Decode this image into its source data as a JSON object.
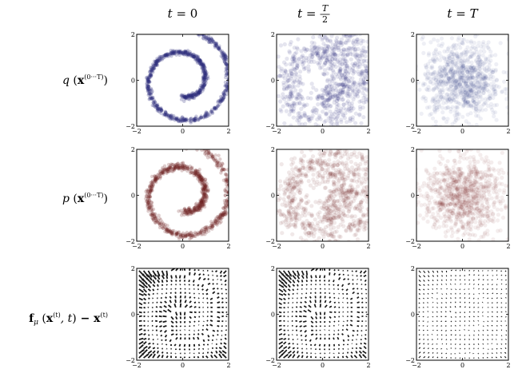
{
  "figure": {
    "column_titles": [
      {
        "pre": "t",
        "eq": " = ",
        "value": "0",
        "frac": null
      },
      {
        "pre": "t",
        "eq": " = ",
        "value": "",
        "frac": {
          "num": "T",
          "den": "2"
        }
      },
      {
        "pre": "t",
        "eq": " = ",
        "value": "T",
        "frac": null
      }
    ],
    "row_labels": [
      {
        "fn": "q",
        "arg": "x",
        "sup": "(0···T)",
        "tail": ""
      },
      {
        "fn": "p",
        "arg": "x",
        "sup": "(0···T)",
        "tail": ""
      },
      {
        "fn": "f",
        "sub": "μ",
        "arg": "x",
        "sup": "(t)",
        "extra": ", t",
        "tail": " − x",
        "tail_sup": "(t)"
      }
    ],
    "colors": {
      "q_samples": "#2b2d7a",
      "p_samples": "#6e1f1f",
      "arrows": "#1a1a1a",
      "axes": "#000000"
    }
  },
  "chart_data": [
    {
      "type": "scatter",
      "panel": "q-t0",
      "distribution": "swiss-roll spiral (data distribution)",
      "color": "#2b2d7a",
      "xlim": [
        -2,
        2
      ],
      "ylim": [
        -2,
        2
      ],
      "xticks": [
        -2,
        0,
        2
      ],
      "yticks": [
        -2,
        0,
        2
      ],
      "xtick_labels": [
        "−2",
        "0",
        "2"
      ],
      "ytick_labels": [
        "−2",
        "0",
        "2"
      ],
      "noise": 0.05,
      "opacity": 0.25
    },
    {
      "type": "scatter",
      "panel": "q-tT2",
      "distribution": "noisy spiral",
      "color": "#2b2d7a",
      "xlim": [
        -2,
        2
      ],
      "ylim": [
        -2,
        2
      ],
      "xticks": [
        -2,
        0,
        2
      ],
      "yticks": [
        -2,
        0,
        2
      ],
      "xtick_labels": [
        "−2",
        "0",
        "2"
      ],
      "ytick_labels": [
        "−2",
        "0",
        "2"
      ],
      "noise": 0.35,
      "opacity": 0.12
    },
    {
      "type": "scatter",
      "panel": "q-tT",
      "distribution": "isotropic Gaussian",
      "color": "#2b2d7a",
      "xlim": [
        -2,
        2
      ],
      "ylim": [
        -2,
        2
      ],
      "xticks": [
        -2,
        0,
        2
      ],
      "yticks": [
        -2,
        0,
        2
      ],
      "xtick_labels": [
        "−2",
        "0",
        "2"
      ],
      "ytick_labels": [
        "−2",
        "0",
        "2"
      ],
      "noise": 1.0,
      "opacity": 0.08
    },
    {
      "type": "scatter",
      "panel": "p-t0",
      "distribution": "reconstructed spiral",
      "color": "#6e1f1f",
      "xlim": [
        -2,
        2
      ],
      "ylim": [
        -2,
        2
      ],
      "xticks": [
        -2,
        0,
        2
      ],
      "yticks": [
        -2,
        0,
        2
      ],
      "xtick_labels": [
        "−2",
        "0",
        "2"
      ],
      "ytick_labels": [
        "−2",
        "0",
        "2"
      ],
      "noise": 0.07,
      "opacity": 0.22
    },
    {
      "type": "scatter",
      "panel": "p-tT2",
      "distribution": "noisy spiral",
      "color": "#6e1f1f",
      "xlim": [
        -2,
        2
      ],
      "ylim": [
        -2,
        2
      ],
      "xticks": [
        -2,
        0,
        2
      ],
      "yticks": [
        -2,
        0,
        2
      ],
      "xtick_labels": [
        "−2",
        "0",
        "2"
      ],
      "ytick_labels": [
        "−2",
        "0",
        "2"
      ],
      "noise": 0.35,
      "opacity": 0.1
    },
    {
      "type": "scatter",
      "panel": "p-tT",
      "distribution": "isotropic Gaussian",
      "color": "#6e1f1f",
      "xlim": [
        -2,
        2
      ],
      "ylim": [
        -2,
        2
      ],
      "xticks": [
        -2,
        0,
        2
      ],
      "yticks": [
        -2,
        0,
        2
      ],
      "xtick_labels": [
        "−2",
        "0",
        "2"
      ],
      "ytick_labels": [
        "−2",
        "0",
        "2"
      ],
      "noise": 1.0,
      "opacity": 0.08
    },
    {
      "type": "quiver",
      "panel": "drift-t0",
      "strength": 1.0,
      "color": "#1a1a1a",
      "xlim": [
        -2,
        2
      ],
      "ylim": [
        -2,
        2
      ],
      "xticks": [
        -2,
        0,
        2
      ],
      "yticks": [
        -2,
        0,
        2
      ],
      "xtick_labels": [
        "−2",
        "0",
        "2"
      ],
      "ytick_labels": [
        "−2",
        "0",
        "2"
      ],
      "grid": 20
    },
    {
      "type": "quiver",
      "panel": "drift-tT2",
      "strength": 0.9,
      "color": "#1a1a1a",
      "xlim": [
        -2,
        2
      ],
      "ylim": [
        -2,
        2
      ],
      "xticks": [
        -2,
        0,
        2
      ],
      "yticks": [
        -2,
        0,
        2
      ],
      "xtick_labels": [
        "−2",
        "0",
        "2"
      ],
      "ytick_labels": [
        "−2",
        "0",
        "2"
      ],
      "grid": 20
    },
    {
      "type": "quiver",
      "panel": "drift-tT",
      "strength": 0.35,
      "color": "#1a1a1a",
      "xlim": [
        -2,
        2
      ],
      "ylim": [
        -2,
        2
      ],
      "xticks": [
        -2,
        0,
        2
      ],
      "yticks": [
        -2,
        0,
        2
      ],
      "xtick_labels": [
        "−2",
        "0",
        "2"
      ],
      "ytick_labels": [
        "−2",
        "0",
        "2"
      ],
      "grid": 20
    }
  ]
}
